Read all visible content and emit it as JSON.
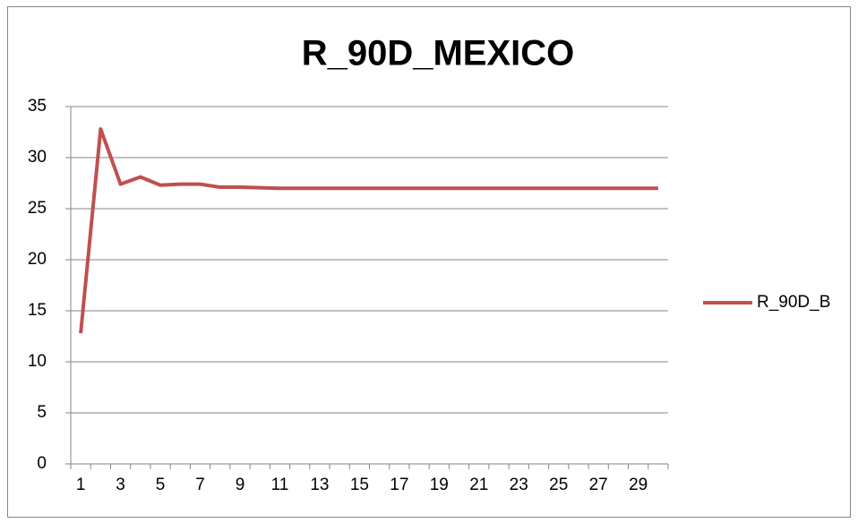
{
  "chart_data": {
    "type": "line",
    "title": "R_90D_MEXICO",
    "categories": [
      "1",
      null,
      "3",
      null,
      "5",
      null,
      "7",
      null,
      "9",
      null,
      "11",
      null,
      "13",
      null,
      "15",
      null,
      "17",
      null,
      "19",
      null,
      "21",
      null,
      "23",
      null,
      "25",
      null,
      "27",
      null,
      "29",
      null
    ],
    "series": [
      {
        "name": "R_90D_B",
        "color": "#c0504d",
        "values": [
          12.8,
          32.8,
          27.4,
          28.1,
          27.3,
          27.4,
          27.4,
          27.1,
          27.1,
          27.05,
          27.0,
          27.0,
          27.0,
          27.0,
          27.0,
          27.0,
          27.0,
          27.0,
          27.0,
          27.0,
          27.0,
          27.0,
          27.0,
          27.0,
          27.0,
          27.0,
          27.0,
          27.0,
          27.0,
          27.0
        ]
      }
    ],
    "ylim": [
      0,
      35
    ],
    "yticks": [
      0,
      5,
      10,
      15,
      20,
      25,
      30,
      35
    ],
    "grid": true,
    "legend": "right"
  }
}
